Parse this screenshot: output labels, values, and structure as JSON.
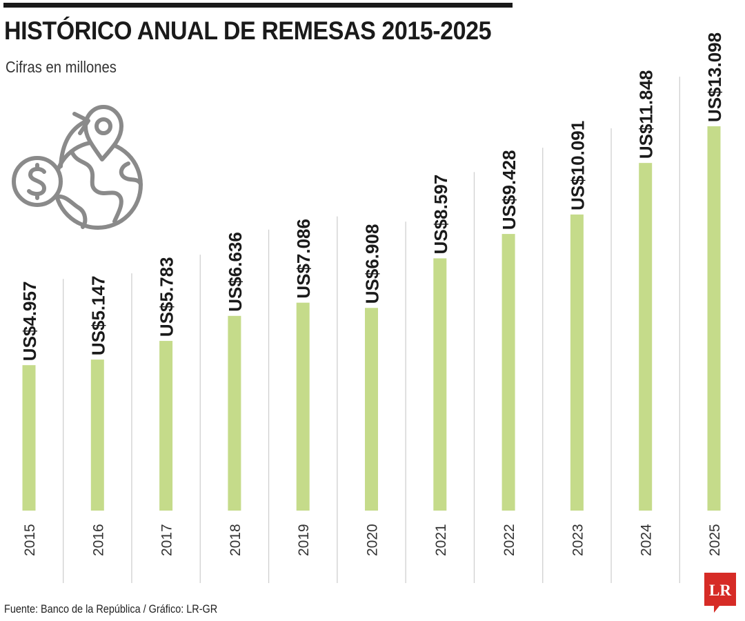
{
  "header": {
    "title": "HISTÓRICO ANUAL DE REMESAS 2015-2025",
    "subtitle": "Cifras en millones"
  },
  "footer": {
    "source": "Fuente: Banco de la República / Gráfico: LR-GR",
    "logo_text": "LR"
  },
  "icon": "globe-money-transfer-icon",
  "colors": {
    "bar": "#c5db8a",
    "gridline": "#cfcfcf",
    "text": "#1a1a1a",
    "logo": "#d62b26",
    "icon_stroke": "#8a8a8a"
  },
  "chart_data": {
    "type": "bar",
    "title": "HISTÓRICO ANUAL DE REMESAS 2015-2025",
    "subtitle": "Cifras en millones",
    "categories": [
      "2015",
      "2016",
      "2017",
      "2018",
      "2019",
      "2020",
      "2021",
      "2022",
      "2023",
      "2024",
      "2025"
    ],
    "values": [
      4957,
      5147,
      5783,
      6636,
      7086,
      6908,
      8597,
      9428,
      10091,
      11848,
      13098
    ],
    "data_labels": [
      "US$4.957",
      "US$5.147",
      "US$5.783",
      "US$6.636",
      "US$7.086",
      "US$6.908",
      "US$8.597",
      "US$9.428",
      "US$10.091",
      "US$11.848",
      "US$13.098"
    ],
    "xlabel": "",
    "ylabel": "",
    "unit": "millones de US$",
    "ylim": [
      0,
      13098
    ],
    "grid": "vertical separators",
    "orientation": "vertical",
    "label_rotation": "rotated -90"
  }
}
